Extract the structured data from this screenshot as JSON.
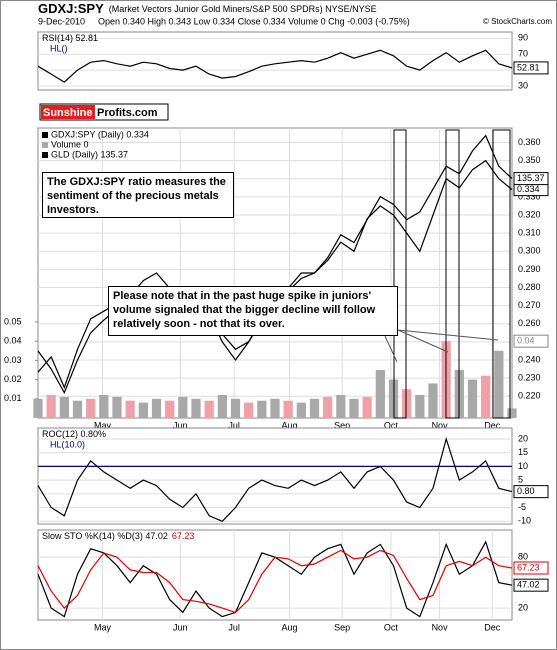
{
  "header": {
    "symbol": "GDXJ:SPY",
    "description": "(Market Vectors Junior Gold Miners/S&P 500 SPDRs) NYSE/NYSE",
    "date": "9-Dec-2010",
    "quote": "Open 0.340 High 0.343 Low 0.334 Close 0.334 Volume 0 Chg -0.003 (-0.75%)",
    "credit": "© StockCharts.com"
  },
  "logo": {
    "brand": "Sunshine",
    "suffix": "Profits.com"
  },
  "annotations": [
    "The GDXJ:SPY ratio measures the sentiment of the precious metals Investors.",
    "Please note that in the past huge spike in juniors' volume signaled that the bigger decline will follow relatively soon - not that its over."
  ],
  "chart_data": [
    {
      "type": "line",
      "title": "RSI(14) 52.81",
      "hl_label": "HL()",
      "xlim": [
        0,
        36
      ],
      "ylim": [
        25,
        98
      ],
      "yticks": [
        30,
        50,
        70,
        90
      ],
      "series": [
        {
          "color": "#000000",
          "values": [
            55,
            45,
            35,
            50,
            60,
            62,
            58,
            55,
            60,
            58,
            52,
            50,
            55,
            45,
            40,
            42,
            48,
            55,
            58,
            60,
            62,
            60,
            65,
            72,
            65,
            70,
            75,
            68,
            55,
            50,
            62,
            72,
            60,
            68,
            75,
            58,
            52.81
          ]
        }
      ]
    },
    {
      "type": "line",
      "xlim": [
        0,
        36
      ],
      "ylim": [
        0.208,
        0.368
      ],
      "yticks": [
        {
          "value": 0.22,
          "label": "0.220"
        },
        {
          "value": 0.23,
          "label": "0.230"
        },
        {
          "value": 0.24,
          "label": "0.240"
        },
        {
          "value": 0.25,
          "label": "0.250"
        },
        {
          "value": 0.26,
          "label": "0.260"
        },
        {
          "value": 0.27,
          "label": "0.270"
        },
        {
          "value": 0.28,
          "label": "0.280"
        },
        {
          "value": 0.29,
          "label": "0.290"
        },
        {
          "value": 0.3,
          "label": "0.300"
        },
        {
          "value": 0.31,
          "label": "0.310"
        },
        {
          "value": 0.32,
          "label": "0.320"
        },
        {
          "value": 0.33,
          "label": "0.330"
        },
        {
          "value": 0.34,
          "label": "0.340"
        },
        {
          "value": 0.35,
          "label": "0.350"
        },
        {
          "value": 0.36,
          "label": "0.360"
        }
      ],
      "xticks": [
        {
          "value": 4.9,
          "label": "May"
        },
        {
          "value": 10.8,
          "label": "Jun"
        },
        {
          "value": 14.9,
          "label": "Jul"
        },
        {
          "value": 19.1,
          "label": "Aug"
        },
        {
          "value": 23.1,
          "label": "Sep"
        },
        {
          "value": 26.8,
          "label": "Oct"
        },
        {
          "value": 30.5,
          "label": "Nov"
        },
        {
          "value": 34.5,
          "label": "Dec"
        }
      ],
      "y2lim": [
        104,
        142
      ],
      "vlim": [
        0,
        0.151
      ],
      "vticks": [
        0.01,
        0.02,
        0.03,
        0.04,
        0.05
      ],
      "volume_marker": 0.04,
      "series": [
        {
          "name": "GDXJ:SPY (Daily) 0.334",
          "color": "#000000",
          "values": [
            0.245,
            0.235,
            0.222,
            0.24,
            0.255,
            0.262,
            0.268,
            0.262,
            0.27,
            0.275,
            0.272,
            0.268,
            0.28,
            0.265,
            0.25,
            0.24,
            0.25,
            0.262,
            0.27,
            0.278,
            0.285,
            0.288,
            0.295,
            0.305,
            0.3,
            0.318,
            0.325,
            0.32,
            0.31,
            0.3,
            0.32,
            0.34,
            0.335,
            0.345,
            0.35,
            0.34,
            0.334
          ]
        },
        {
          "name": "Volume 0",
          "type": "bar",
          "axis": "volume",
          "color": "#a8a8a8",
          "values": [
            0.01,
            0.012,
            0.011,
            0.009,
            0.01,
            0.012,
            0.011,
            0.009,
            0.008,
            0.01,
            0.009,
            0.011,
            0.01,
            0.009,
            0.012,
            0.01,
            0.008,
            0.009,
            0.01,
            0.009,
            0.008,
            0.01,
            0.011,
            0.012,
            0.01,
            0.011,
            0.025,
            0.02,
            0.015,
            0.012,
            0.018,
            0.04,
            0.025,
            0.02,
            0.022,
            0.035,
            0.005
          ]
        },
        {
          "name": "GLD (Daily) 135.37",
          "axis": "y2",
          "color": "#000000",
          "values": [
            110,
            112,
            108,
            113,
            117,
            118,
            119,
            120,
            122,
            123,
            121,
            119,
            118,
            116,
            115,
            113,
            114,
            117,
            118,
            121,
            123,
            123,
            125,
            128,
            127,
            130,
            133,
            132,
            130,
            131,
            134,
            137,
            136,
            139,
            141,
            137,
            135.37
          ]
        }
      ]
    },
    {
      "type": "line",
      "title": "ROC(12) 0.80%",
      "hl_label": "HL(10.0)",
      "hl": 10.0,
      "xlim": [
        0,
        36
      ],
      "ylim": [
        -11,
        24
      ],
      "yticks": [
        -10,
        -5,
        0,
        5,
        10,
        15,
        20
      ],
      "series": [
        {
          "color": "#000000",
          "last_label": "0.80",
          "values": [
            3,
            -5,
            -8,
            5,
            12,
            8,
            5,
            2,
            5,
            3,
            -2,
            -5,
            0,
            -8,
            -10,
            -5,
            2,
            5,
            3,
            2,
            5,
            3,
            5,
            8,
            2,
            8,
            10,
            5,
            -3,
            -5,
            2,
            20,
            5,
            8,
            12,
            2,
            0.8
          ]
        }
      ]
    },
    {
      "type": "line",
      "title": "Slow STO %K(14) %D(3) 47.02",
      "xlim": [
        0,
        36
      ],
      "ylim": [
        6,
        112
      ],
      "yticks": [
        20,
        80
      ],
      "xticks": [
        {
          "value": 4.9,
          "label": "May"
        },
        {
          "value": 10.8,
          "label": "Jun"
        },
        {
          "value": 14.9,
          "label": "Jul"
        },
        {
          "value": 19.1,
          "label": "Aug"
        },
        {
          "value": 23.1,
          "label": "Sep"
        },
        {
          "value": 26.8,
          "label": "Oct"
        },
        {
          "value": 30.5,
          "label": "Nov"
        },
        {
          "value": 34.5,
          "label": "Dec"
        }
      ],
      "series": [
        {
          "color": "#000000",
          "values": [
            60,
            20,
            10,
            60,
            90,
            85,
            70,
            50,
            70,
            60,
            30,
            15,
            40,
            20,
            10,
            15,
            50,
            85,
            80,
            70,
            60,
            80,
            90,
            95,
            60,
            85,
            95,
            70,
            20,
            10,
            50,
            95,
            60,
            70,
            98,
            50,
            47.02
          ]
        },
        {
          "color": "#e00000",
          "values": [
            70,
            40,
            20,
            35,
            65,
            85,
            80,
            65,
            62,
            62,
            50,
            30,
            28,
            25,
            20,
            15,
            30,
            60,
            80,
            78,
            70,
            72,
            80,
            88,
            78,
            80,
            88,
            82,
            55,
            30,
            35,
            70,
            75,
            70,
            80,
            70,
            67.23
          ]
        }
      ]
    }
  ]
}
